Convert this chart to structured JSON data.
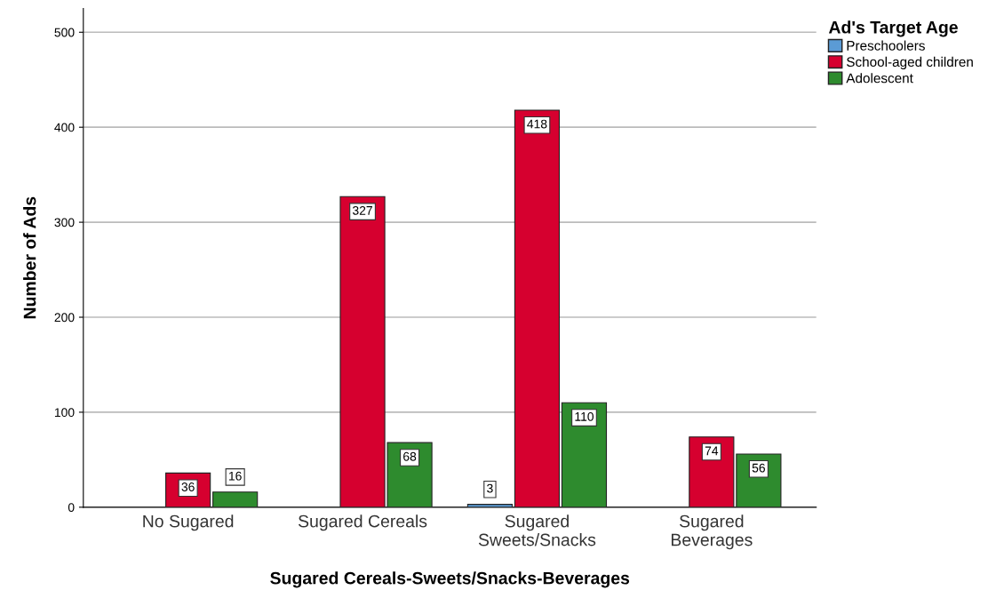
{
  "chart_data": {
    "type": "bar",
    "xlabel": "Sugared Cereals-Sweets/Snacks-Beverages",
    "ylabel": "Number of Ads",
    "legend_title": "Ad's Target Age",
    "legend": "top right",
    "categories": [
      "No Sugared",
      "Sugared Cereals",
      "Sugared\nSweets/Snacks",
      "Sugared\nBeverages"
    ],
    "series": [
      {
        "name": "Preschoolers",
        "color": "#5b9bd5",
        "values": [
          null,
          null,
          3,
          null
        ]
      },
      {
        "name": "School-aged children",
        "color": "#d6002f",
        "values": [
          36,
          327,
          418,
          74
        ]
      },
      {
        "name": "Adolescent",
        "color": "#2e8b2e",
        "values": [
          16,
          68,
          110,
          56
        ]
      }
    ],
    "ylim": [
      0,
      525
    ],
    "yticks": [
      0,
      100,
      200,
      300,
      400,
      500
    ],
    "grid": "y",
    "data_labels": true
  }
}
